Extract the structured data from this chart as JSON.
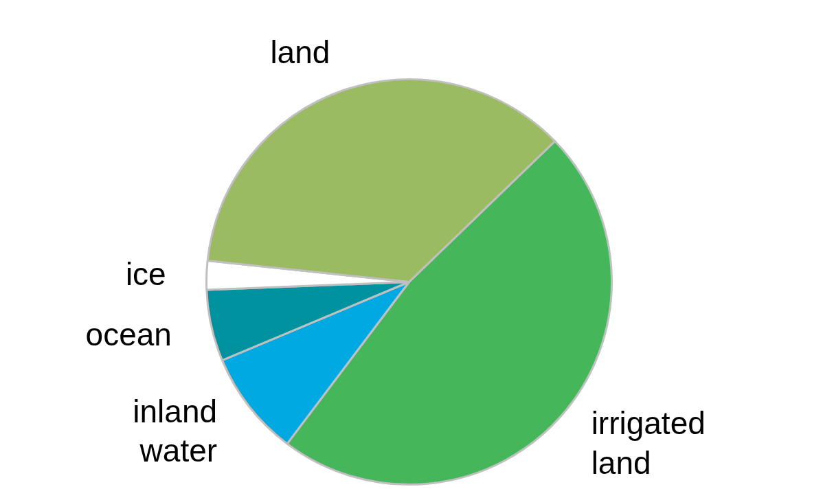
{
  "chart_data": {
    "type": "pie",
    "categories": [
      "irrigated\nland",
      "inland\nwater",
      "ocean",
      "ice",
      "land"
    ],
    "values": [
      47.5,
      8.4,
      5.7,
      2.3,
      36.1
    ],
    "colors": [
      "#45b65a",
      "#00a9e2",
      "#00929f",
      "#ffffff",
      "#9bbb63"
    ]
  }
}
